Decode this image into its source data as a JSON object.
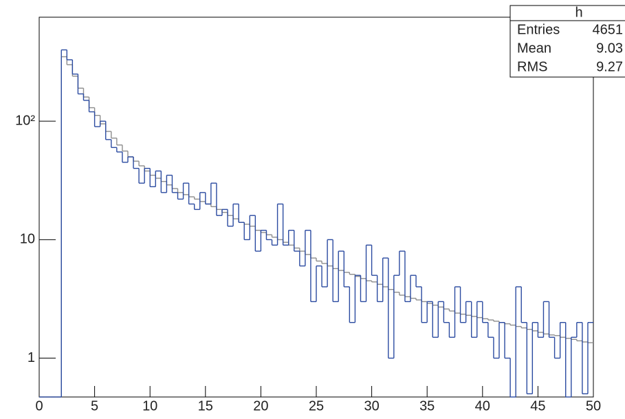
{
  "chart_data": {
    "type": "histogram",
    "log_y": true,
    "bins": [
      0,
      0.5,
      1,
      1.5,
      2,
      2.5,
      3,
      3.5,
      4,
      4.5,
      5,
      5.5,
      6,
      6.5,
      7,
      7.5,
      8,
      8.5,
      9,
      9.5,
      10,
      10.5,
      11,
      11.5,
      12,
      12.5,
      13,
      13.5,
      14,
      14.5,
      15,
      15.5,
      16,
      16.5,
      17,
      17.5,
      18,
      18.5,
      19,
      19.5,
      20,
      20.5,
      21,
      21.5,
      22,
      22.5,
      23,
      23.5,
      24,
      24.5,
      25,
      25.5,
      26,
      26.5,
      27,
      27.5,
      28,
      28.5,
      29,
      29.5,
      30,
      30.5,
      31,
      31.5,
      32,
      32.5,
      33,
      33.5,
      34,
      34.5,
      35,
      35.5,
      36,
      36.5,
      37,
      37.5,
      38,
      38.5,
      39,
      39.5,
      40,
      40.5,
      41,
      41.5,
      42,
      42.5,
      43,
      43.5,
      44,
      44.5,
      45,
      45.5,
      46,
      46.5,
      47,
      47.5,
      48,
      48.5,
      49,
      49.5,
      50
    ],
    "series": [
      {
        "color": "#8c8c8c",
        "values": [
          0,
          0,
          0,
          0,
          350,
          300,
          240,
          190,
          160,
          130,
          112,
          95,
          82,
          72,
          63,
          56,
          50,
          46,
          42,
          38,
          35,
          33,
          31,
          29,
          27,
          25,
          24,
          23,
          22,
          21,
          20,
          19,
          18,
          17,
          16,
          15,
          14,
          13.5,
          13,
          12,
          11.5,
          11,
          10.5,
          10,
          9.5,
          9,
          8.5,
          8,
          7.5,
          7,
          6.6,
          6.3,
          6,
          5.7,
          5.5,
          5.3,
          5.1,
          4.9,
          4.7,
          4.5,
          4.4,
          4.2,
          4,
          3.8,
          3.6,
          3.4,
          3.3,
          3.2,
          3.1,
          3,
          2.9,
          2.8,
          2.7,
          2.6,
          2.5,
          2.4,
          2.35,
          2.3,
          2.25,
          2.2,
          2.15,
          2.1,
          2.05,
          2,
          1.95,
          1.9,
          1.85,
          1.8,
          1.75,
          1.7,
          1.65,
          1.6,
          1.57,
          1.55,
          1.5,
          1.47,
          1.44,
          1.4,
          1.37,
          1.35
        ]
      },
      {
        "color": "#2a4aa0",
        "values": [
          0,
          0,
          0,
          0,
          400,
          330,
          250,
          170,
          150,
          120,
          90,
          100,
          70,
          60,
          55,
          45,
          50,
          40,
          30,
          40,
          28,
          38,
          25,
          35,
          25,
          22,
          30,
          20,
          18,
          25,
          20,
          30,
          16,
          18,
          13,
          20,
          14,
          10,
          16,
          8,
          12,
          10,
          9,
          20,
          9,
          12,
          8,
          6,
          12,
          3,
          6,
          4,
          10,
          3,
          8,
          4,
          2,
          5,
          3,
          9,
          5,
          3,
          7,
          1,
          5,
          8,
          3,
          5,
          4,
          2,
          3,
          1.5,
          3,
          2,
          1.5,
          4,
          2,
          3,
          1.5,
          3,
          2,
          1.5,
          1,
          2,
          1,
          0,
          4,
          2,
          0.5,
          2,
          1.5,
          3,
          1.5,
          1,
          2,
          0,
          1.5,
          2,
          0.5,
          2
        ]
      }
    ],
    "xlim": [
      0,
      50
    ],
    "xticks": [
      0,
      5,
      10,
      15,
      20,
      25,
      30,
      35,
      40,
      45,
      50
    ],
    "ylim": [
      0.47,
      755
    ],
    "yticks": [
      1,
      10,
      {
        "value": 100,
        "label": "10²"
      }
    ],
    "stats": {
      "title": "h",
      "rows": [
        {
          "label": "Entries",
          "value": "4651"
        },
        {
          "label": "Mean",
          "value": "9.03"
        },
        {
          "label": "RMS",
          "value": "9.27"
        }
      ]
    }
  }
}
